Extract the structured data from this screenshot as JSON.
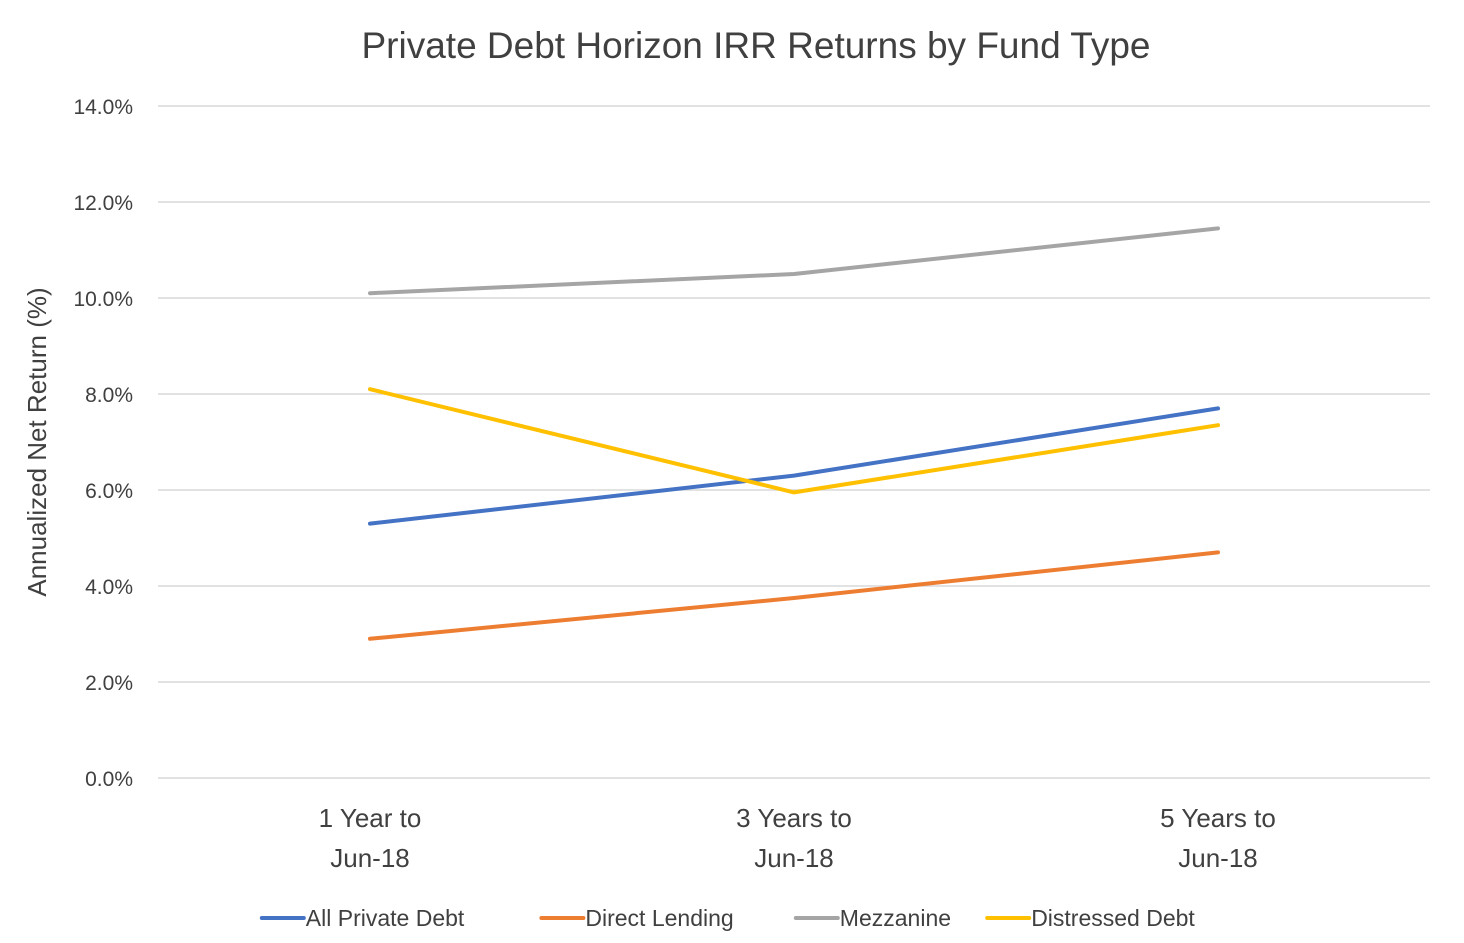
{
  "chart_data": {
    "type": "line",
    "title": "Private Debt Horizon IRR Returns by Fund Type",
    "xlabel": "",
    "ylabel": "Annualized Net Return (%)",
    "categories": [
      [
        "1 Year to",
        "Jun-18"
      ],
      [
        "3 Years to",
        "Jun-18"
      ],
      [
        "5 Years to",
        "Jun-18"
      ]
    ],
    "ylim": [
      0,
      14
    ],
    "y_ticks": [
      0,
      2,
      4,
      6,
      8,
      10,
      12,
      14
    ],
    "y_tick_labels": [
      "0.0%",
      "2.0%",
      "4.0%",
      "6.0%",
      "8.0%",
      "10.0%",
      "12.0%",
      "14.0%"
    ],
    "grid": true,
    "legend_position": "bottom",
    "series": [
      {
        "name": "All Private Debt",
        "color": "#4472c4",
        "values": [
          5.3,
          6.3,
          7.7
        ]
      },
      {
        "name": "Direct Lending",
        "color": "#ed7d31",
        "values": [
          2.9,
          3.75,
          4.7
        ]
      },
      {
        "name": "Mezzanine",
        "color": "#a5a5a5",
        "values": [
          10.1,
          10.5,
          11.45
        ]
      },
      {
        "name": "Distressed Debt",
        "color": "#ffc000",
        "values": [
          8.1,
          5.95,
          7.35
        ]
      }
    ]
  }
}
